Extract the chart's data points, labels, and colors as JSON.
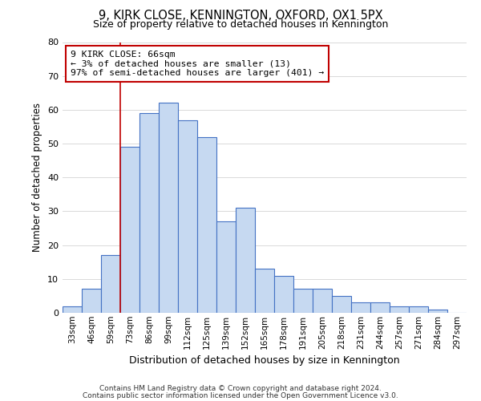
{
  "title": "9, KIRK CLOSE, KENNINGTON, OXFORD, OX1 5PX",
  "subtitle": "Size of property relative to detached houses in Kennington",
  "xlabel": "Distribution of detached houses by size in Kennington",
  "ylabel": "Number of detached properties",
  "bar_labels": [
    "33sqm",
    "46sqm",
    "59sqm",
    "73sqm",
    "86sqm",
    "99sqm",
    "112sqm",
    "125sqm",
    "139sqm",
    "152sqm",
    "165sqm",
    "178sqm",
    "191sqm",
    "205sqm",
    "218sqm",
    "231sqm",
    "244sqm",
    "257sqm",
    "271sqm",
    "284sqm",
    "297sqm"
  ],
  "bar_heights": [
    2,
    7,
    17,
    49,
    59,
    62,
    57,
    52,
    27,
    31,
    13,
    11,
    7,
    7,
    5,
    3,
    3,
    2,
    2,
    1,
    0
  ],
  "bar_color": "#c6d9f1",
  "bar_edge_color": "#4472c4",
  "vline_x_index": 2.5,
  "vline_color": "#c00000",
  "ylim": [
    0,
    80
  ],
  "yticks": [
    0,
    10,
    20,
    30,
    40,
    50,
    60,
    70,
    80
  ],
  "annotation_title": "9 KIRK CLOSE: 66sqm",
  "annotation_line1": "← 3% of detached houses are smaller (13)",
  "annotation_line2": "97% of semi-detached houses are larger (401) →",
  "annotation_box_color": "#ffffff",
  "annotation_box_edge": "#c00000",
  "footer_line1": "Contains HM Land Registry data © Crown copyright and database right 2024.",
  "footer_line2": "Contains public sector information licensed under the Open Government Licence v3.0.",
  "background_color": "#ffffff",
  "grid_color": "#d9d9d9"
}
